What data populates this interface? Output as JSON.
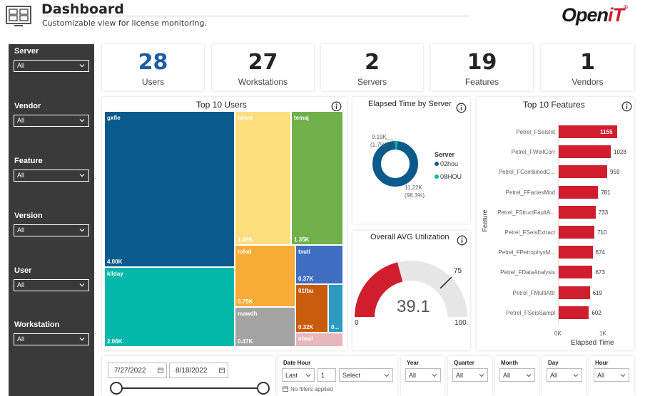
{
  "header": {
    "title": "Dashboard",
    "subtitle": "Customizable view for license monitoring.",
    "logo_main": "Open",
    "logo_it": "iT",
    "logo_reg": "®"
  },
  "filters": [
    {
      "label": "Server",
      "value": "All"
    },
    {
      "label": "Vendor",
      "value": "All"
    },
    {
      "label": "Feature",
      "value": "All"
    },
    {
      "label": "Version",
      "value": "All"
    },
    {
      "label": "User",
      "value": "All"
    },
    {
      "label": "Workstation",
      "value": "All"
    }
  ],
  "kpis": [
    {
      "value": "28",
      "label": "Users"
    },
    {
      "value": "27",
      "label": "Workstations"
    },
    {
      "value": "2",
      "label": "Servers"
    },
    {
      "value": "19",
      "label": "Features"
    },
    {
      "value": "1",
      "label": "Vendors"
    }
  ],
  "top_users": {
    "title": "Top 10 Users",
    "tiles": [
      {
        "name": "gxfie",
        "value": "4.00K",
        "color": "#0b5a8c"
      },
      {
        "name": "kllday",
        "value": "2.06K",
        "color": "#01b8aa"
      },
      {
        "name": "talam",
        "value": "1.49K",
        "color": "#fdde7e"
      },
      {
        "name": "temaj",
        "value": "1.35K",
        "color": "#6fb04a"
      },
      {
        "name": "tofad",
        "value": "0.75K",
        "color": "#f9ab37"
      },
      {
        "name": "txuti",
        "value": "0.37K",
        "color": "#3f6ec2"
      },
      {
        "name": "mawdh",
        "value": "0.47K",
        "color": "#a3a3a3"
      },
      {
        "name": "01fbu",
        "value": "0.32K",
        "color": "#c95b0d"
      },
      {
        "name": "0...",
        "value": "0...",
        "color": "#2c9bc0"
      },
      {
        "name": "ahsal",
        "value": "",
        "color": "#e8b7bd"
      }
    ]
  },
  "elapsed_server": {
    "title": "Elapsed Time by Server",
    "legend_title": "Server",
    "small_value": "0.19K",
    "small_pct": "(1.7%)",
    "big_value": "11.22K",
    "big_pct": "(98.3%)",
    "series": [
      {
        "name": "02hou",
        "color": "#0b5a8c"
      },
      {
        "name": "08HOU",
        "color": "#01b8aa"
      }
    ]
  },
  "utilization": {
    "title": "Overall AVG Utilization",
    "value": "39.1",
    "min": "0",
    "max": "100",
    "target": "75"
  },
  "top_features": {
    "title": "Top 10 Features",
    "ylabel": "Feature",
    "xlabel": "Elapsed Time",
    "tick_start": "0K",
    "tick_end": "1K",
    "chart_data": {
      "type": "bar",
      "categories": [
        "Petrel_FSeisInt",
        "Petrel_FWellCorr",
        "Petrel_FCombinedC...",
        "Petrel_FFaciesMod",
        "Petrel_FStructFaultA...",
        "Petrel_FSeisExtract",
        "Petrel_FPetrophysM...",
        "Petrel_FDataAnalysis",
        "Petrel_FMultiAttr",
        "Petrel_FSeisSampl"
      ],
      "values": [
        1155,
        1028,
        959,
        781,
        733,
        710,
        674,
        673,
        619,
        602
      ],
      "value_labels": [
        "1155",
        "1028",
        "959",
        "781",
        "733",
        "710",
        "674",
        "673",
        "619",
        "602"
      ],
      "xlim": [
        0,
        1000
      ]
    }
  },
  "dates": {
    "start": "7/27/2022",
    "end": "8/18/2022"
  },
  "date_hour": {
    "title": "Date Hour",
    "mode": "Last",
    "count": "1",
    "unit": "Select",
    "note": "No filters applied"
  },
  "time_slicers": [
    {
      "title": "Year",
      "value": "All"
    },
    {
      "title": "Quarter",
      "value": "All"
    },
    {
      "title": "Month",
      "value": "All"
    },
    {
      "title": "Day",
      "value": "All"
    },
    {
      "title": "Hour",
      "value": "All"
    }
  ]
}
